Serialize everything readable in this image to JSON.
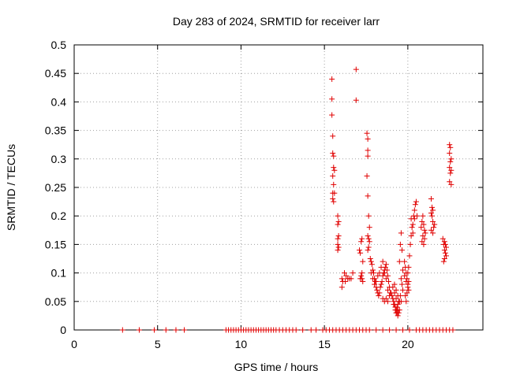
{
  "chart_data": {
    "type": "scatter",
    "title": "Day 283 of 2024, SRMTID for receiver larr",
    "xlabel": "GPS time / hours",
    "ylabel": "SRMTID / TECUs",
    "xlim": [
      0,
      24.5
    ],
    "ylim": [
      0,
      0.5
    ],
    "xticks": [
      0,
      5,
      10,
      15,
      20
    ],
    "xtick_labels": [
      "0",
      "5",
      "10",
      "15",
      "20"
    ],
    "yticks": [
      0,
      0.05,
      0.1,
      0.15,
      0.2,
      0.25,
      0.3,
      0.35,
      0.4,
      0.45,
      0.5
    ],
    "ytick_labels": [
      "0",
      "0.05",
      "0.1",
      "0.15",
      "0.2",
      "0.25",
      "0.3",
      "0.35",
      "0.4",
      "0.45",
      "0.5"
    ],
    "grid": true,
    "legend": false,
    "marker": "+",
    "colors": {
      "points": "#e00000",
      "grid": "#a0a0a0",
      "axis": "#000000"
    },
    "series": [
      {
        "points": [
          [
            2.9,
            0
          ],
          [
            3.9,
            0
          ],
          [
            4.8,
            0
          ],
          [
            5.5,
            0
          ],
          [
            6.1,
            0
          ],
          [
            6.6,
            0
          ],
          [
            9.1,
            0
          ],
          [
            9.25,
            0
          ],
          [
            9.4,
            0
          ],
          [
            9.55,
            0
          ],
          [
            9.7,
            0
          ],
          [
            9.85,
            0
          ],
          [
            10.0,
            0
          ],
          [
            10.15,
            0
          ],
          [
            10.3,
            0
          ],
          [
            10.45,
            0
          ],
          [
            10.6,
            0
          ],
          [
            10.75,
            0
          ],
          [
            10.9,
            0
          ],
          [
            11.05,
            0
          ],
          [
            11.2,
            0
          ],
          [
            11.35,
            0
          ],
          [
            11.5,
            0
          ],
          [
            11.65,
            0
          ],
          [
            11.8,
            0
          ],
          [
            11.95,
            0
          ],
          [
            12.1,
            0
          ],
          [
            12.3,
            0
          ],
          [
            12.5,
            0
          ],
          [
            12.7,
            0
          ],
          [
            12.9,
            0
          ],
          [
            13.1,
            0
          ],
          [
            13.3,
            0
          ],
          [
            13.7,
            0
          ],
          [
            14.2,
            0
          ],
          [
            14.5,
            0
          ],
          [
            14.9,
            0
          ],
          [
            15.1,
            0
          ],
          [
            15.3,
            0
          ],
          [
            15.5,
            0
          ],
          [
            15.7,
            0
          ],
          [
            15.9,
            0
          ],
          [
            16.1,
            0
          ],
          [
            16.3,
            0
          ],
          [
            16.5,
            0
          ],
          [
            16.7,
            0
          ],
          [
            16.9,
            0
          ],
          [
            17.1,
            0
          ],
          [
            17.3,
            0
          ],
          [
            17.5,
            0
          ],
          [
            17.7,
            0
          ],
          [
            18.1,
            0
          ],
          [
            18.5,
            0
          ],
          [
            18.9,
            0
          ],
          [
            19.3,
            0
          ],
          [
            19.7,
            0
          ],
          [
            20.1,
            0
          ],
          [
            20.5,
            0
          ],
          [
            20.7,
            0
          ],
          [
            20.9,
            0
          ],
          [
            21.1,
            0
          ],
          [
            21.3,
            0
          ],
          [
            21.5,
            0
          ],
          [
            21.7,
            0
          ],
          [
            21.9,
            0
          ],
          [
            22.1,
            0
          ],
          [
            22.3,
            0
          ],
          [
            22.5,
            0
          ],
          [
            22.7,
            0
          ],
          [
            15.45,
            0.44
          ],
          [
            15.45,
            0.405
          ],
          [
            15.45,
            0.377
          ],
          [
            15.5,
            0.34
          ],
          [
            15.5,
            0.31
          ],
          [
            15.55,
            0.305
          ],
          [
            15.55,
            0.285
          ],
          [
            15.6,
            0.28
          ],
          [
            15.5,
            0.27
          ],
          [
            15.55,
            0.255
          ],
          [
            15.5,
            0.24
          ],
          [
            15.6,
            0.24
          ],
          [
            15.5,
            0.23
          ],
          [
            15.55,
            0.225
          ],
          [
            15.8,
            0.2
          ],
          [
            15.85,
            0.19
          ],
          [
            15.8,
            0.185
          ],
          [
            15.85,
            0.165
          ],
          [
            15.8,
            0.16
          ],
          [
            15.8,
            0.15
          ],
          [
            15.85,
            0.145
          ],
          [
            15.8,
            0.14
          ],
          [
            16.05,
            0.09
          ],
          [
            16.1,
            0.085
          ],
          [
            16.05,
            0.075
          ],
          [
            16.2,
            0.1
          ],
          [
            16.3,
            0.095
          ],
          [
            16.25,
            0.085
          ],
          [
            16.4,
            0.09
          ],
          [
            16.5,
            0.09
          ],
          [
            16.6,
            0.09
          ],
          [
            16.7,
            0.1
          ],
          [
            16.9,
            0.457
          ],
          [
            16.9,
            0.403
          ],
          [
            17.1,
            0.14
          ],
          [
            17.15,
            0.135
          ],
          [
            17.2,
            0.155
          ],
          [
            17.25,
            0.16
          ],
          [
            17.3,
            0.12
          ],
          [
            17.25,
            0.1
          ],
          [
            17.2,
            0.095
          ],
          [
            17.3,
            0.085
          ],
          [
            17.25,
            0.09
          ],
          [
            17.15,
            0.09
          ],
          [
            17.55,
            0.345
          ],
          [
            17.6,
            0.335
          ],
          [
            17.6,
            0.315
          ],
          [
            17.6,
            0.305
          ],
          [
            17.55,
            0.27
          ],
          [
            17.6,
            0.235
          ],
          [
            17.65,
            0.2
          ],
          [
            17.7,
            0.18
          ],
          [
            17.6,
            0.165
          ],
          [
            17.65,
            0.16
          ],
          [
            17.7,
            0.155
          ],
          [
            17.65,
            0.145
          ],
          [
            17.6,
            0.14
          ],
          [
            17.75,
            0.125
          ],
          [
            17.8,
            0.12
          ],
          [
            17.85,
            0.115
          ],
          [
            17.9,
            0.105
          ],
          [
            17.95,
            0.1
          ],
          [
            18.0,
            0.09
          ],
          [
            18.05,
            0.085
          ],
          [
            18.1,
            0.075
          ],
          [
            18.15,
            0.07
          ],
          [
            18.2,
            0.065
          ],
          [
            18.25,
            0.06
          ],
          [
            18.3,
            0.065
          ],
          [
            18.35,
            0.075
          ],
          [
            18.4,
            0.08
          ],
          [
            18.45,
            0.085
          ],
          [
            18.5,
            0.095
          ],
          [
            18.55,
            0.1
          ],
          [
            18.6,
            0.105
          ],
          [
            18.65,
            0.11
          ],
          [
            18.7,
            0.115
          ],
          [
            18.75,
            0.105
          ],
          [
            18.8,
            0.095
          ],
          [
            18.85,
            0.085
          ],
          [
            18.9,
            0.075
          ],
          [
            18.95,
            0.065
          ],
          [
            17.8,
            0.1
          ],
          [
            17.9,
            0.09
          ],
          [
            18.0,
            0.08
          ],
          [
            18.1,
            0.085
          ],
          [
            18.2,
            0.095
          ],
          [
            18.3,
            0.1
          ],
          [
            18.4,
            0.11
          ],
          [
            18.5,
            0.12
          ],
          [
            18.6,
            0.1
          ],
          [
            18.7,
            0.09
          ],
          [
            18.8,
            0.07
          ],
          [
            18.9,
            0.06
          ],
          [
            18.5,
            0.055
          ],
          [
            18.6,
            0.05
          ],
          [
            18.7,
            0.055
          ],
          [
            18.8,
            0.05
          ],
          [
            19.0,
            0.065
          ],
          [
            19.05,
            0.06
          ],
          [
            19.1,
            0.055
          ],
          [
            19.15,
            0.05
          ],
          [
            19.2,
            0.045
          ],
          [
            19.25,
            0.04
          ],
          [
            19.3,
            0.035
          ],
          [
            19.35,
            0.03
          ],
          [
            19.4,
            0.025
          ],
          [
            19.45,
            0.03
          ],
          [
            19.5,
            0.035
          ],
          [
            19.1,
            0.075
          ],
          [
            19.2,
            0.065
          ],
          [
            19.3,
            0.055
          ],
          [
            19.4,
            0.045
          ],
          [
            19.5,
            0.05
          ],
          [
            19.2,
            0.08
          ],
          [
            19.3,
            0.07
          ],
          [
            19.4,
            0.06
          ],
          [
            19.15,
            0.045
          ],
          [
            19.25,
            0.035
          ],
          [
            19.35,
            0.04
          ],
          [
            19.45,
            0.05
          ],
          [
            19.4,
            0.035
          ],
          [
            19.3,
            0.03
          ],
          [
            19.5,
            0.12
          ],
          [
            19.55,
            0.15
          ],
          [
            19.6,
            0.17
          ],
          [
            19.65,
            0.14
          ],
          [
            19.7,
            0.105
          ],
          [
            19.6,
            0.09
          ],
          [
            19.65,
            0.08
          ],
          [
            19.7,
            0.07
          ],
          [
            19.55,
            0.06
          ],
          [
            19.6,
            0.05
          ],
          [
            19.8,
            0.12
          ],
          [
            19.85,
            0.11
          ],
          [
            19.9,
            0.1
          ],
          [
            19.95,
            0.09
          ],
          [
            20.0,
            0.08
          ],
          [
            20.05,
            0.07
          ],
          [
            19.85,
            0.06
          ],
          [
            19.9,
            0.05
          ],
          [
            19.95,
            0.065
          ],
          [
            20.0,
            0.075
          ],
          [
            20.05,
            0.085
          ],
          [
            19.8,
            0.095
          ],
          [
            19.9,
            0.085
          ],
          [
            20.0,
            0.1
          ],
          [
            20.05,
            0.11
          ],
          [
            20.1,
            0.13
          ],
          [
            20.15,
            0.15
          ],
          [
            20.2,
            0.165
          ],
          [
            20.25,
            0.18
          ],
          [
            20.3,
            0.185
          ],
          [
            20.2,
            0.195
          ],
          [
            20.35,
            0.2
          ],
          [
            20.4,
            0.21
          ],
          [
            20.45,
            0.22
          ],
          [
            20.5,
            0.225
          ],
          [
            20.55,
            0.2
          ],
          [
            20.4,
            0.195
          ],
          [
            20.3,
            0.17
          ],
          [
            20.85,
            0.19
          ],
          [
            20.9,
            0.2
          ],
          [
            20.95,
            0.185
          ],
          [
            21.0,
            0.175
          ],
          [
            20.9,
            0.165
          ],
          [
            20.85,
            0.155
          ],
          [
            20.95,
            0.15
          ],
          [
            21.0,
            0.16
          ],
          [
            21.05,
            0.17
          ],
          [
            20.8,
            0.18
          ],
          [
            21.4,
            0.23
          ],
          [
            21.45,
            0.215
          ],
          [
            21.5,
            0.21
          ],
          [
            21.4,
            0.205
          ],
          [
            21.45,
            0.2
          ],
          [
            21.5,
            0.19
          ],
          [
            21.55,
            0.18
          ],
          [
            21.4,
            0.175
          ],
          [
            21.5,
            0.17
          ],
          [
            21.6,
            0.185
          ],
          [
            22.1,
            0.16
          ],
          [
            22.15,
            0.15
          ],
          [
            22.2,
            0.14
          ],
          [
            22.25,
            0.135
          ],
          [
            22.3,
            0.13
          ],
          [
            22.2,
            0.125
          ],
          [
            22.15,
            0.12
          ],
          [
            22.3,
            0.145
          ],
          [
            22.25,
            0.15
          ],
          [
            22.2,
            0.155
          ],
          [
            22.5,
            0.325
          ],
          [
            22.55,
            0.32
          ],
          [
            22.5,
            0.31
          ],
          [
            22.6,
            0.3
          ],
          [
            22.55,
            0.295
          ],
          [
            22.5,
            0.285
          ],
          [
            22.6,
            0.28
          ],
          [
            22.55,
            0.275
          ],
          [
            22.5,
            0.26
          ],
          [
            22.6,
            0.255
          ]
        ]
      }
    ]
  }
}
